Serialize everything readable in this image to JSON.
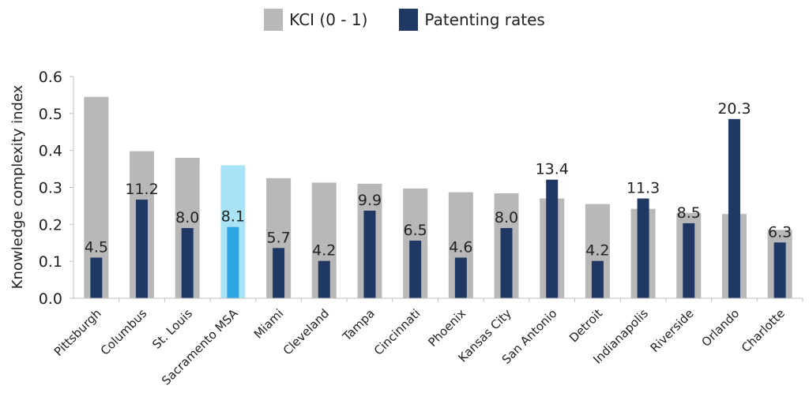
{
  "chart_data": {
    "type": "bar",
    "ylabel": "Knowledge complexity index",
    "ylim": [
      0,
      0.6
    ],
    "yticks": [
      "0.0",
      "0.1",
      "0.2",
      "0.3",
      "0.4",
      "0.5",
      "0.6"
    ],
    "legend_position": "top-center",
    "categories": [
      "Pittsburgh",
      "Columbus",
      "St. Louis",
      "Sacramento MSA",
      "Miami",
      "Cleveland",
      "Tampa",
      "Cincinnati",
      "Phoenix",
      "Kansas City",
      "San Antonio",
      "Detroit",
      "Indianapolis",
      "Riverside",
      "Orlando",
      "Charlotte"
    ],
    "highlight_index": 3,
    "series": [
      {
        "name": "KCI (0 - 1)",
        "color": "#b8b8b8",
        "highlight_color": "#a9e3f6",
        "values": [
          0.545,
          0.398,
          0.38,
          0.36,
          0.325,
          0.313,
          0.31,
          0.297,
          0.287,
          0.284,
          0.27,
          0.255,
          0.242,
          0.231,
          0.228,
          0.185
        ]
      },
      {
        "name": "Patenting rates",
        "color": "#1f3864",
        "highlight_color": "#2ca6e0",
        "values": [
          0.11,
          0.267,
          0.19,
          0.193,
          0.136,
          0.101,
          0.237,
          0.156,
          0.11,
          0.19,
          0.321,
          0.101,
          0.27,
          0.203,
          0.485,
          0.151
        ],
        "labels": [
          "4.5",
          "11.2",
          "8.0",
          "8.1",
          "5.7",
          "4.2",
          "9.9",
          "6.5",
          "4.6",
          "8.0",
          "13.4",
          "4.2",
          "11.3",
          "8.5",
          "20.3",
          "6.3"
        ]
      }
    ]
  }
}
